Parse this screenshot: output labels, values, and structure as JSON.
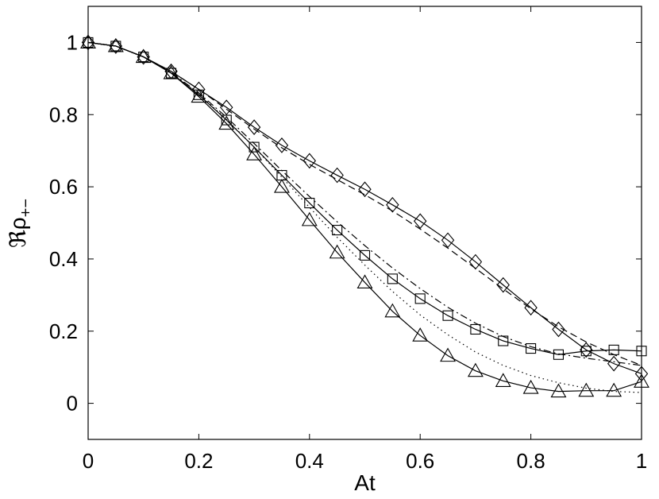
{
  "chart_data": {
    "type": "line",
    "xlabel": "At",
    "ylabel": "ℜρ",
    "ylabel_sub": "+−",
    "xlim": [
      0,
      1
    ],
    "ylim": [
      -0.1,
      1.1
    ],
    "x_ticks": [
      0,
      0.2,
      0.4,
      0.6,
      0.8,
      1
    ],
    "x_tick_labels": [
      "0",
      "0.2",
      "0.4",
      "0.6",
      "0.8",
      "1"
    ],
    "y_ticks": [
      0,
      0.2,
      0.4,
      0.6,
      0.8,
      1
    ],
    "y_tick_labels": [
      "0",
      "0.2",
      "0.4",
      "0.6",
      "0.8",
      "1"
    ],
    "grid": false,
    "series": [
      {
        "marker": "diamond",
        "line_style": "solid",
        "x": [
          0,
          0.05,
          0.1,
          0.15,
          0.2,
          0.25,
          0.3,
          0.35,
          0.4,
          0.45,
          0.5,
          0.55,
          0.6,
          0.65,
          0.7,
          0.75,
          0.8,
          0.85,
          0.9,
          0.95,
          1.0
        ],
        "y": [
          1.0,
          0.99,
          0.96,
          0.92,
          0.87,
          0.82,
          0.765,
          0.715,
          0.672,
          0.632,
          0.593,
          0.55,
          0.505,
          0.452,
          0.392,
          0.328,
          0.265,
          0.205,
          0.148,
          0.11,
          0.082
        ]
      },
      {
        "marker": "square",
        "line_style": "solid",
        "x": [
          0,
          0.05,
          0.1,
          0.15,
          0.2,
          0.25,
          0.3,
          0.35,
          0.4,
          0.45,
          0.5,
          0.55,
          0.6,
          0.65,
          0.7,
          0.75,
          0.8,
          0.85,
          0.9,
          0.95,
          1.0
        ],
        "y": [
          1.0,
          0.99,
          0.96,
          0.915,
          0.855,
          0.785,
          0.71,
          0.632,
          0.555,
          0.48,
          0.41,
          0.345,
          0.29,
          0.243,
          0.205,
          0.173,
          0.152,
          0.135,
          0.145,
          0.148,
          0.145
        ]
      },
      {
        "marker": "triangle",
        "line_style": "solid",
        "x": [
          0,
          0.05,
          0.1,
          0.15,
          0.2,
          0.25,
          0.3,
          0.35,
          0.4,
          0.45,
          0.5,
          0.55,
          0.6,
          0.65,
          0.7,
          0.75,
          0.8,
          0.85,
          0.9,
          0.95,
          1.0
        ],
        "y": [
          1.0,
          0.99,
          0.96,
          0.915,
          0.85,
          0.775,
          0.69,
          0.6,
          0.508,
          0.418,
          0.335,
          0.255,
          0.188,
          0.132,
          0.09,
          0.062,
          0.043,
          0.033,
          0.035,
          0.035,
          0.06
        ]
      },
      {
        "marker": "none",
        "line_style": "dashed",
        "x": [
          0,
          0.05,
          0.1,
          0.15,
          0.2,
          0.25,
          0.3,
          0.35,
          0.4,
          0.45,
          0.5,
          0.55,
          0.6,
          0.65,
          0.7,
          0.75,
          0.8,
          0.85,
          0.9,
          0.95,
          1.0
        ],
        "y": [
          1.0,
          0.99,
          0.96,
          0.92,
          0.87,
          0.815,
          0.76,
          0.708,
          0.662,
          0.62,
          0.578,
          0.533,
          0.483,
          0.43,
          0.374,
          0.317,
          0.262,
          0.212,
          0.17,
          0.135,
          0.105
        ]
      },
      {
        "marker": "none",
        "line_style": "dashdot",
        "x": [
          0,
          0.05,
          0.1,
          0.15,
          0.2,
          0.25,
          0.3,
          0.35,
          0.4,
          0.45,
          0.5,
          0.55,
          0.6,
          0.65,
          0.7,
          0.75,
          0.8,
          0.85,
          0.9,
          0.95,
          1.0
        ],
        "y": [
          1.0,
          0.99,
          0.96,
          0.917,
          0.86,
          0.793,
          0.72,
          0.645,
          0.573,
          0.503,
          0.437,
          0.375,
          0.318,
          0.266,
          0.222,
          0.185,
          0.157,
          0.137,
          0.125,
          0.115,
          0.105
        ]
      },
      {
        "marker": "none",
        "line_style": "dotted",
        "x": [
          0,
          0.05,
          0.1,
          0.15,
          0.2,
          0.25,
          0.3,
          0.35,
          0.4,
          0.45,
          0.5,
          0.55,
          0.6,
          0.65,
          0.7,
          0.75,
          0.8,
          0.85,
          0.9,
          0.95,
          1.0
        ],
        "y": [
          1.0,
          0.99,
          0.96,
          0.916,
          0.857,
          0.787,
          0.71,
          0.627,
          0.543,
          0.46,
          0.383,
          0.31,
          0.245,
          0.19,
          0.142,
          0.105,
          0.077,
          0.057,
          0.042,
          0.033,
          0.03
        ]
      }
    ]
  }
}
